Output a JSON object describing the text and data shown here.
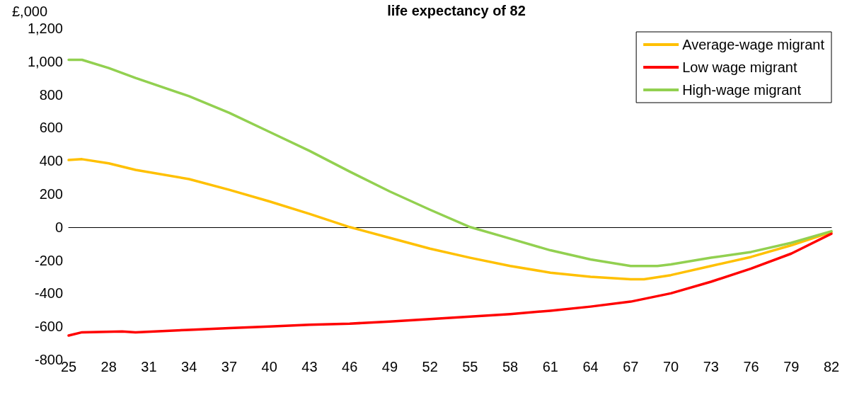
{
  "chart_data": {
    "type": "line",
    "title": "life expectancy of 82",
    "ylabel": "£,000",
    "xlim": [
      25,
      82
    ],
    "xticks": [
      25,
      28,
      31,
      34,
      37,
      40,
      43,
      46,
      49,
      52,
      55,
      58,
      61,
      64,
      67,
      70,
      73,
      76,
      79,
      82
    ],
    "ylim": [
      -800,
      1200
    ],
    "yticks": [
      -800,
      -600,
      -400,
      -200,
      0,
      200,
      400,
      600,
      800,
      {
        "value": 1000,
        "label": "1,000"
      },
      {
        "value": 1200,
        "label": "1,200"
      }
    ],
    "legend": "top right",
    "marker": "none",
    "line_style": "solid",
    "series": [
      {
        "name": "Average-wage migrant",
        "color": "#ffc000",
        "x": [
          25,
          26,
          28,
          30,
          34,
          37,
          40,
          43,
          46,
          49,
          52,
          55,
          58,
          61,
          64,
          67,
          68,
          70,
          73,
          76,
          79,
          82
        ],
        "values": [
          405,
          410,
          385,
          345,
          290,
          225,
          155,
          80,
          0,
          -65,
          -130,
          -185,
          -235,
          -275,
          -300,
          -315,
          -315,
          -290,
          -235,
          -180,
          -110,
          -30
        ]
      },
      {
        "name": "Low wage migrant",
        "color": "#ff0000",
        "x": [
          25,
          26,
          29,
          30,
          34,
          37,
          40,
          43,
          46,
          49,
          52,
          55,
          58,
          61,
          64,
          67,
          70,
          73,
          76,
          79,
          82
        ],
        "values": [
          -655,
          -635,
          -630,
          -635,
          -620,
          -610,
          -600,
          -590,
          -583,
          -570,
          -555,
          -540,
          -525,
          -505,
          -480,
          -450,
          -400,
          -330,
          -250,
          -160,
          -40
        ]
      },
      {
        "name": "High-wage migrant",
        "color": "#92d050",
        "x": [
          25,
          26,
          28,
          30,
          34,
          37,
          40,
          43,
          46,
          49,
          52,
          55,
          58,
          61,
          64,
          67,
          69,
          70,
          73,
          76,
          79,
          82
        ],
        "values": [
          1010,
          1010,
          960,
          900,
          790,
          690,
          575,
          460,
          335,
          215,
          105,
          0,
          -70,
          -140,
          -195,
          -235,
          -235,
          -225,
          -185,
          -150,
          -95,
          -25
        ]
      }
    ]
  }
}
